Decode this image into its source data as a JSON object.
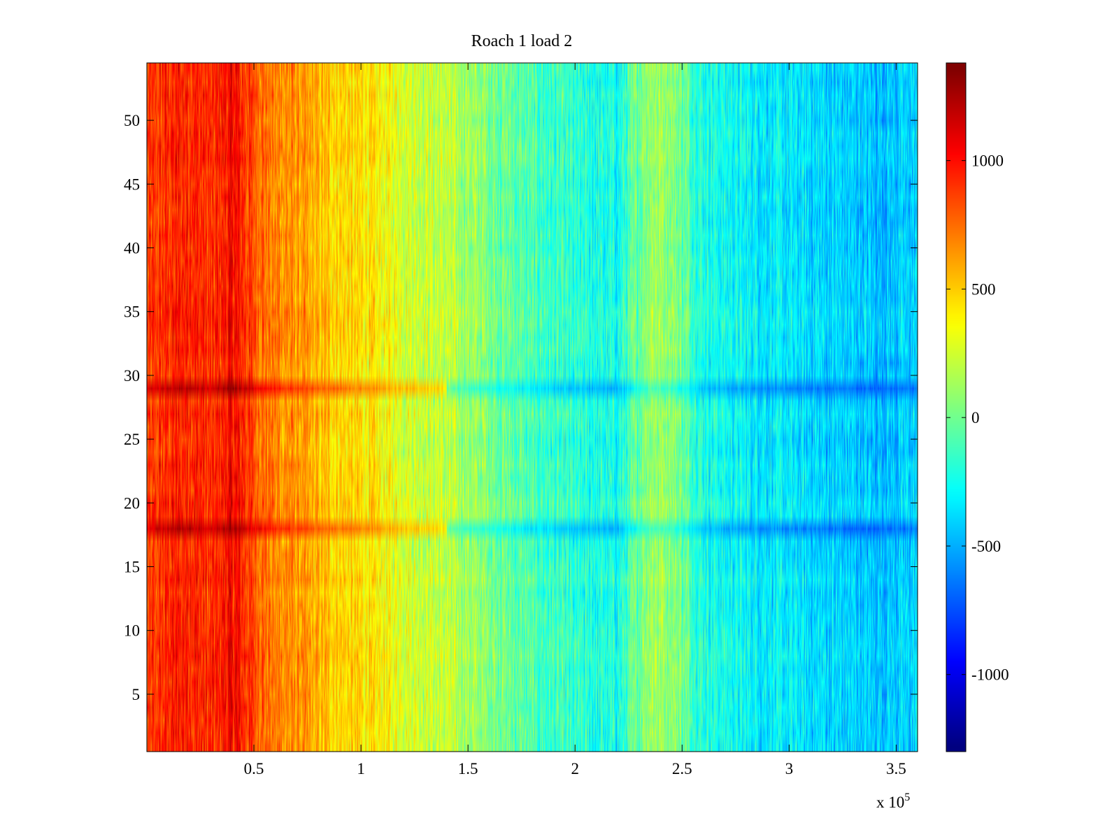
{
  "chart_data": {
    "type": "heatmap",
    "title": "Roach 1 load 2",
    "xlabel": "",
    "ylabel": "",
    "x_range": [
      0,
      360000
    ],
    "y_range": [
      0.5,
      54.5
    ],
    "rows": 54,
    "x_exponent_label": "x 10",
    "x_exponent_power": "5",
    "x_ticks": [
      {
        "value": 50000,
        "label": "0.5"
      },
      {
        "value": 100000,
        "label": "1"
      },
      {
        "value": 150000,
        "label": "1.5"
      },
      {
        "value": 200000,
        "label": "2"
      },
      {
        "value": 250000,
        "label": "2.5"
      },
      {
        "value": 300000,
        "label": "3"
      },
      {
        "value": 350000,
        "label": "3.5"
      }
    ],
    "y_ticks": [
      {
        "value": 5,
        "label": "5"
      },
      {
        "value": 10,
        "label": "10"
      },
      {
        "value": 15,
        "label": "15"
      },
      {
        "value": 20,
        "label": "20"
      },
      {
        "value": 25,
        "label": "25"
      },
      {
        "value": 30,
        "label": "30"
      },
      {
        "value": 35,
        "label": "35"
      },
      {
        "value": 40,
        "label": "40"
      },
      {
        "value": 45,
        "label": "45"
      },
      {
        "value": 50,
        "label": "50"
      }
    ],
    "colorbar": {
      "colormap": "jet",
      "range": [
        -1300,
        1380
      ],
      "ticks": [
        {
          "value": 1000,
          "label": "1000"
        },
        {
          "value": 500,
          "label": "500"
        },
        {
          "value": 0,
          "label": "0"
        },
        {
          "value": -500,
          "label": "-500"
        },
        {
          "value": -1000,
          "label": "-1000"
        }
      ]
    },
    "column_profile": {
      "x": [
        0,
        10000,
        20000,
        30000,
        40000,
        50000,
        60000,
        70000,
        80000,
        100000,
        120000,
        140000,
        160000,
        180000,
        200000,
        220000,
        235000,
        245000,
        260000,
        280000,
        300000,
        320000,
        340000,
        360000
      ],
      "values": [
        850,
        950,
        1000,
        900,
        1050,
        850,
        700,
        650,
        550,
        450,
        300,
        200,
        50,
        -100,
        -200,
        -250,
        150,
        100,
        -200,
        -300,
        -350,
        -400,
        -450,
        -400
      ]
    },
    "highlight_rows": [
      {
        "row": 18,
        "value": 1250
      },
      {
        "row": 29,
        "value": 1200
      }
    ]
  }
}
